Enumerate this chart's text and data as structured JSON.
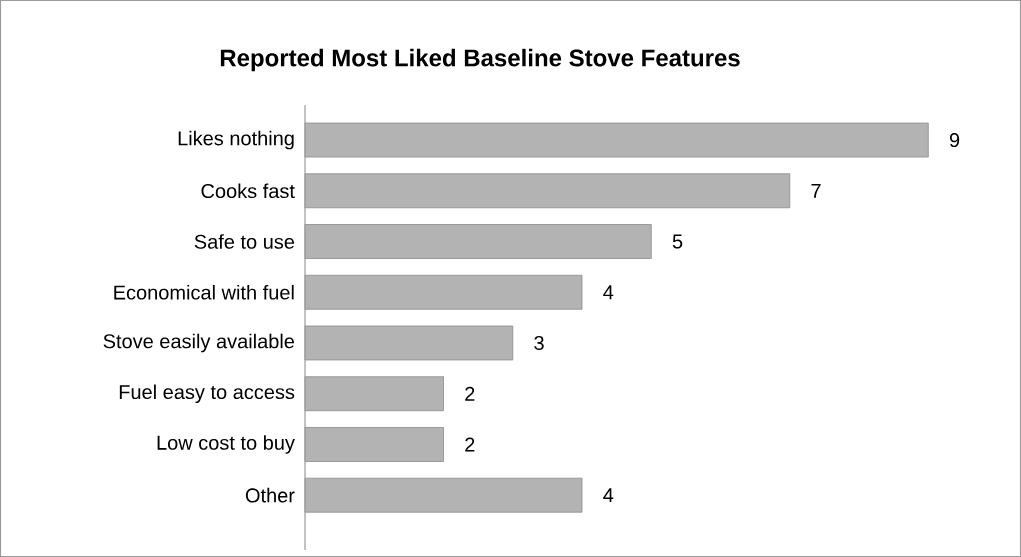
{
  "chart_data": {
    "type": "bar",
    "orientation": "horizontal",
    "title": "Reported Most Liked Baseline Stove Features",
    "categories": [
      "Likes nothing",
      "Cooks fast",
      "Safe to use",
      "Economical with fuel",
      "Stove easily available",
      "Fuel easy to access",
      "Low cost to buy",
      "Other"
    ],
    "values": [
      9,
      7,
      5,
      4,
      3,
      2,
      2,
      4
    ],
    "color": "#b3b3b3",
    "data_labels": true
  }
}
